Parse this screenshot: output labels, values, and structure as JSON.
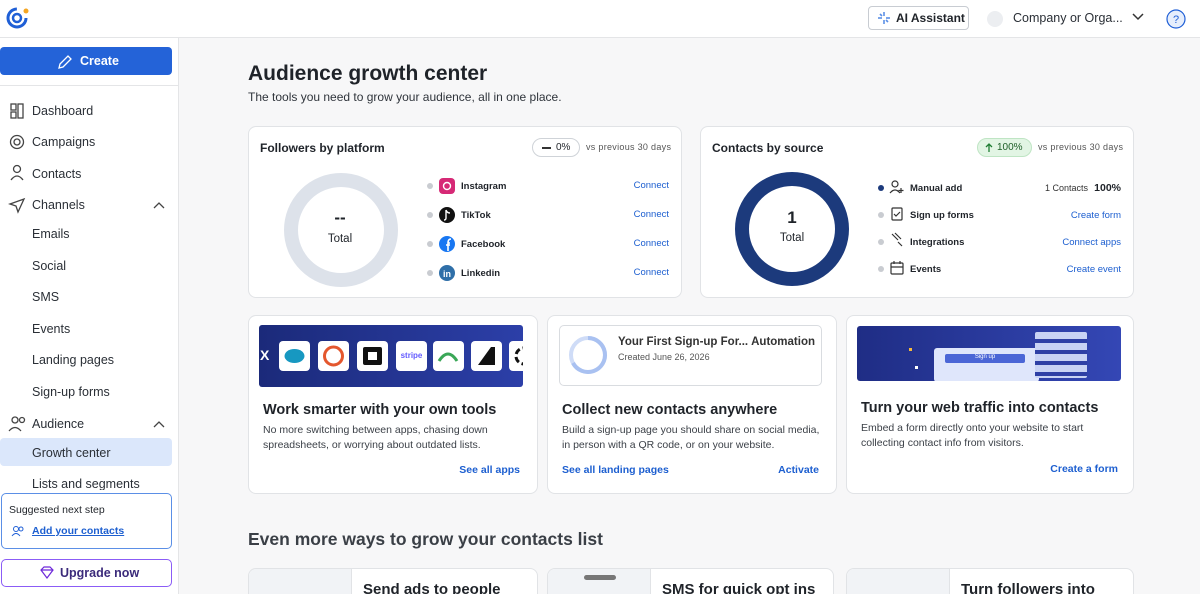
{
  "header": {
    "ai_assistant": "AI Assistant",
    "organization": "Company or Orga..."
  },
  "sidebar": {
    "create": "Create",
    "nav": [
      "Dashboard",
      "Campaigns",
      "Contacts",
      "Channels",
      "Emails",
      "Social",
      "SMS",
      "Events",
      "Landing pages",
      "Sign-up forms",
      "Audience",
      "Growth center",
      "Lists and segments"
    ],
    "suggested": {
      "label": "Suggested next step",
      "action": "Add your contacts"
    },
    "upgrade": "Upgrade now"
  },
  "page": {
    "title": "Audience growth center",
    "subtitle": "The tools you need to grow your audience, all in one place."
  },
  "followers": {
    "title": "Followers by platform",
    "change": "0%",
    "comparison": "vs previous 30 days",
    "total_value": "--",
    "total_label": "Total",
    "platforms": [
      {
        "name": "Instagram",
        "action": "Connect"
      },
      {
        "name": "TikTok",
        "action": "Connect"
      },
      {
        "name": "Facebook",
        "action": "Connect"
      },
      {
        "name": "Linkedin",
        "action": "Connect"
      }
    ]
  },
  "contacts": {
    "title": "Contacts by source",
    "change": "100%",
    "comparison": "vs previous 30 days",
    "total_value": "1",
    "total_label": "Total",
    "sources": [
      {
        "name": "Manual add",
        "count": "1 Contacts",
        "share": "100%"
      },
      {
        "name": "Sign up forms",
        "action": "Create form"
      },
      {
        "name": "Integrations",
        "action": "Connect apps"
      },
      {
        "name": "Events",
        "action": "Create event"
      }
    ]
  },
  "tools": [
    {
      "logo_texts": [
        "X",
        "stripe"
      ],
      "title": "Work smarter with your own tools",
      "description": "No more switching between apps, chasing down spreadsheets, or worrying about outdated lists.",
      "links": [
        "See all apps"
      ]
    },
    {
      "preview": {
        "name": "Your First Sign-up For...",
        "badge": "Automation",
        "created": "Created June 26, 2026"
      },
      "title": "Collect new contacts anywhere",
      "description": "Build a sign-up page you should share on social media, in person with a QR code, or on your website.",
      "links": [
        "See all landing pages",
        "Activate"
      ]
    },
    {
      "preview_button": "Sign up",
      "title": "Turn your web traffic into contacts",
      "description": "Embed a form directly onto your website to start collecting contact info from visitors.",
      "links": [
        "Create a form"
      ]
    }
  ],
  "more": {
    "title": "Even more ways to grow your contacts list",
    "cards": [
      "Send ads to people",
      "SMS for quick opt ins",
      "Turn followers into"
    ]
  }
}
